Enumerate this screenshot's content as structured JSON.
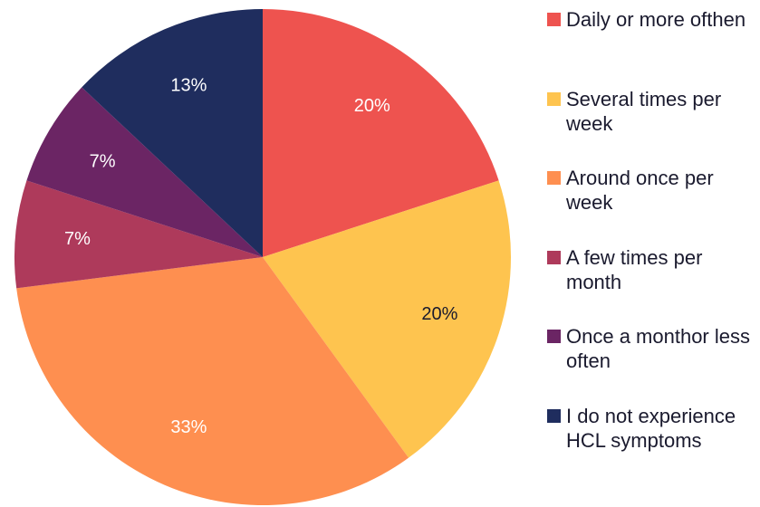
{
  "chart_data": {
    "type": "pie",
    "categories": [
      "Daily or more ofthen",
      "Several times per week",
      "Around once per week",
      "A few times per month",
      "Once a monthor less often",
      "I do not experience HCL symptoms"
    ],
    "values": [
      20,
      20,
      33,
      7,
      7,
      13
    ],
    "value_labels": [
      "20%",
      "20%",
      "33%",
      "7%",
      "7%",
      "13%"
    ],
    "colors": [
      "#ee534f",
      "#fec44f",
      "#fe8f50",
      "#ae3a5b",
      "#6b2564",
      "#1f2d5e"
    ],
    "label_colors": [
      "#ffffff",
      "#1a1a2e",
      "#ffffff",
      "#ffffff",
      "#ffffff",
      "#ffffff"
    ],
    "legend": "right"
  }
}
